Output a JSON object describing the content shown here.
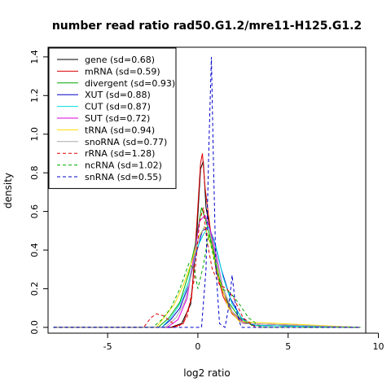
{
  "chart_data": {
    "type": "line",
    "title": "number read ratio rad50.G1.2/mre11-H125.G1.2",
    "xlabel": "log2 ratio",
    "ylabel": "density",
    "xlim": [
      -8.3,
      9.3
    ],
    "ylim": [
      -0.03,
      1.45
    ],
    "xticks": [
      -5,
      0,
      5,
      10
    ],
    "yticks": [
      0.0,
      0.2,
      0.4,
      0.6,
      0.8,
      1.0,
      1.2,
      1.4
    ],
    "grid": false,
    "legend_position": "top-left",
    "series": [
      {
        "name": "gene (sd=0.68)",
        "color": "#000000",
        "dash": "solid",
        "points": [
          [
            -8,
            0
          ],
          [
            -1.5,
            0
          ],
          [
            -0.9,
            0.02
          ],
          [
            -0.4,
            0.12
          ],
          [
            -0.1,
            0.42
          ],
          [
            0.15,
            0.82
          ],
          [
            0.3,
            0.86
          ],
          [
            0.45,
            0.62
          ],
          [
            0.7,
            0.5
          ],
          [
            1.0,
            0.32
          ],
          [
            1.4,
            0.18
          ],
          [
            1.9,
            0.08
          ],
          [
            2.5,
            0.03
          ],
          [
            3.2,
            0.01
          ],
          [
            9,
            0
          ]
        ]
      },
      {
        "name": "mRNA (sd=0.59)",
        "color": "#dd0000",
        "dash": "solid",
        "points": [
          [
            -8,
            0
          ],
          [
            -1.4,
            0
          ],
          [
            -0.8,
            0.02
          ],
          [
            -0.35,
            0.15
          ],
          [
            -0.05,
            0.55
          ],
          [
            0.15,
            0.85
          ],
          [
            0.25,
            0.9
          ],
          [
            0.4,
            0.72
          ],
          [
            0.7,
            0.5
          ],
          [
            1.0,
            0.3
          ],
          [
            1.4,
            0.16
          ],
          [
            1.9,
            0.07
          ],
          [
            2.5,
            0.02
          ],
          [
            9,
            0
          ]
        ]
      },
      {
        "name": "divergent (sd=0.93)",
        "color": "#00aa00",
        "dash": "solid",
        "points": [
          [
            -8,
            0
          ],
          [
            -2.2,
            0
          ],
          [
            -1.6,
            0.05
          ],
          [
            -1.0,
            0.13
          ],
          [
            -0.5,
            0.28
          ],
          [
            -0.1,
            0.45
          ],
          [
            0.2,
            0.62
          ],
          [
            0.45,
            0.55
          ],
          [
            0.8,
            0.42
          ],
          [
            1.2,
            0.25
          ],
          [
            1.7,
            0.13
          ],
          [
            2.3,
            0.05
          ],
          [
            3.0,
            0.01
          ],
          [
            9,
            0
          ]
        ]
      },
      {
        "name": "XUT (sd=0.88)",
        "color": "#0000cc",
        "dash": "solid",
        "points": [
          [
            -8,
            0
          ],
          [
            -2.0,
            0
          ],
          [
            -1.5,
            0.04
          ],
          [
            -1.0,
            0.1
          ],
          [
            -0.5,
            0.22
          ],
          [
            -0.1,
            0.38
          ],
          [
            0.25,
            0.5
          ],
          [
            0.6,
            0.52
          ],
          [
            0.9,
            0.45
          ],
          [
            1.3,
            0.3
          ],
          [
            1.8,
            0.15
          ],
          [
            2.4,
            0.05
          ],
          [
            3.1,
            0.01
          ],
          [
            9,
            0
          ]
        ]
      },
      {
        "name": "CUT (sd=0.87)",
        "color": "#00dddd",
        "dash": "solid",
        "points": [
          [
            -8,
            0
          ],
          [
            -2.0,
            0
          ],
          [
            -1.5,
            0.05
          ],
          [
            -1.0,
            0.12
          ],
          [
            -0.5,
            0.24
          ],
          [
            -0.1,
            0.4
          ],
          [
            0.3,
            0.48
          ],
          [
            0.6,
            0.52
          ],
          [
            1.0,
            0.42
          ],
          [
            1.4,
            0.26
          ],
          [
            1.9,
            0.12
          ],
          [
            2.5,
            0.04
          ],
          [
            3.2,
            0.01
          ],
          [
            9,
            0
          ]
        ]
      },
      {
        "name": "SUT (sd=0.72)",
        "color": "#dd00dd",
        "dash": "solid",
        "points": [
          [
            -8,
            0
          ],
          [
            -1.7,
            0
          ],
          [
            -1.1,
            0.04
          ],
          [
            -0.6,
            0.15
          ],
          [
            -0.2,
            0.38
          ],
          [
            0.1,
            0.55
          ],
          [
            0.4,
            0.58
          ],
          [
            0.7,
            0.5
          ],
          [
            1.0,
            0.38
          ],
          [
            1.4,
            0.2
          ],
          [
            1.9,
            0.08
          ],
          [
            2.6,
            0.02
          ],
          [
            9,
            0
          ]
        ]
      },
      {
        "name": "tRNA (sd=0.94)",
        "color": "#ffdd00",
        "dash": "solid",
        "points": [
          [
            -8,
            0
          ],
          [
            -2.3,
            0
          ],
          [
            -1.8,
            0.06
          ],
          [
            -1.3,
            0.12
          ],
          [
            -0.8,
            0.22
          ],
          [
            -0.3,
            0.35
          ],
          [
            0.1,
            0.48
          ],
          [
            0.4,
            0.52
          ],
          [
            0.8,
            0.4
          ],
          [
            1.2,
            0.24
          ],
          [
            1.7,
            0.1
          ],
          [
            2.3,
            0.03
          ],
          [
            9,
            0
          ]
        ]
      },
      {
        "name": "snoRNA (sd=0.77)",
        "color": "#aaaaaa",
        "dash": "solid",
        "points": [
          [
            -8,
            0
          ],
          [
            -1.8,
            0
          ],
          [
            -1.2,
            0.05
          ],
          [
            -0.7,
            0.14
          ],
          [
            -0.3,
            0.3
          ],
          [
            0.0,
            0.45
          ],
          [
            0.35,
            0.52
          ],
          [
            0.65,
            0.5
          ],
          [
            1.0,
            0.36
          ],
          [
            1.4,
            0.2
          ],
          [
            1.9,
            0.08
          ],
          [
            2.5,
            0.02
          ],
          [
            9,
            0
          ]
        ]
      },
      {
        "name": "rRNA (sd=1.28)",
        "color": "#dd0000",
        "dash": "dashed",
        "points": [
          [
            -8,
            0
          ],
          [
            -3.0,
            0
          ],
          [
            -2.6,
            0.05
          ],
          [
            -2.3,
            0.07
          ],
          [
            -1.9,
            0.06
          ],
          [
            -1.5,
            0.03
          ],
          [
            -1.1,
            0.0
          ],
          [
            -0.6,
            0.05
          ],
          [
            -0.2,
            0.25
          ],
          [
            0.1,
            0.55
          ],
          [
            0.3,
            0.62
          ],
          [
            0.5,
            0.45
          ],
          [
            0.8,
            0.3
          ],
          [
            1.2,
            0.22
          ],
          [
            1.6,
            0.2
          ],
          [
            2.0,
            0.15
          ],
          [
            2.5,
            0.05
          ],
          [
            3.2,
            0.0
          ],
          [
            9,
            0
          ]
        ]
      },
      {
        "name": "ncRNA (sd=1.02)",
        "color": "#00aa00",
        "dash": "dashed",
        "points": [
          [
            -8,
            0
          ],
          [
            -2.5,
            0
          ],
          [
            -2.0,
            0.04
          ],
          [
            -1.5,
            0.1
          ],
          [
            -1.0,
            0.2
          ],
          [
            -0.5,
            0.33
          ],
          [
            -0.2,
            0.3
          ],
          [
            0.0,
            0.2
          ],
          [
            0.3,
            0.32
          ],
          [
            0.6,
            0.48
          ],
          [
            0.9,
            0.35
          ],
          [
            1.3,
            0.2
          ],
          [
            1.8,
            0.18
          ],
          [
            2.3,
            0.12
          ],
          [
            2.8,
            0.05
          ],
          [
            3.5,
            0.0
          ],
          [
            9,
            0
          ]
        ]
      },
      {
        "name": "snRNA (sd=0.55)",
        "color": "#0000cc",
        "dash": "dashed",
        "points": [
          [
            -8,
            0
          ],
          [
            0.2,
            0
          ],
          [
            0.45,
            0.3
          ],
          [
            0.6,
            0.9
          ],
          [
            0.75,
            1.4
          ],
          [
            0.85,
            0.9
          ],
          [
            1.0,
            0.3
          ],
          [
            1.2,
            0.02
          ],
          [
            1.5,
            0.0
          ],
          [
            1.7,
            0.1
          ],
          [
            1.9,
            0.27
          ],
          [
            2.1,
            0.1
          ],
          [
            2.4,
            0.0
          ],
          [
            9,
            0
          ]
        ]
      }
    ]
  }
}
